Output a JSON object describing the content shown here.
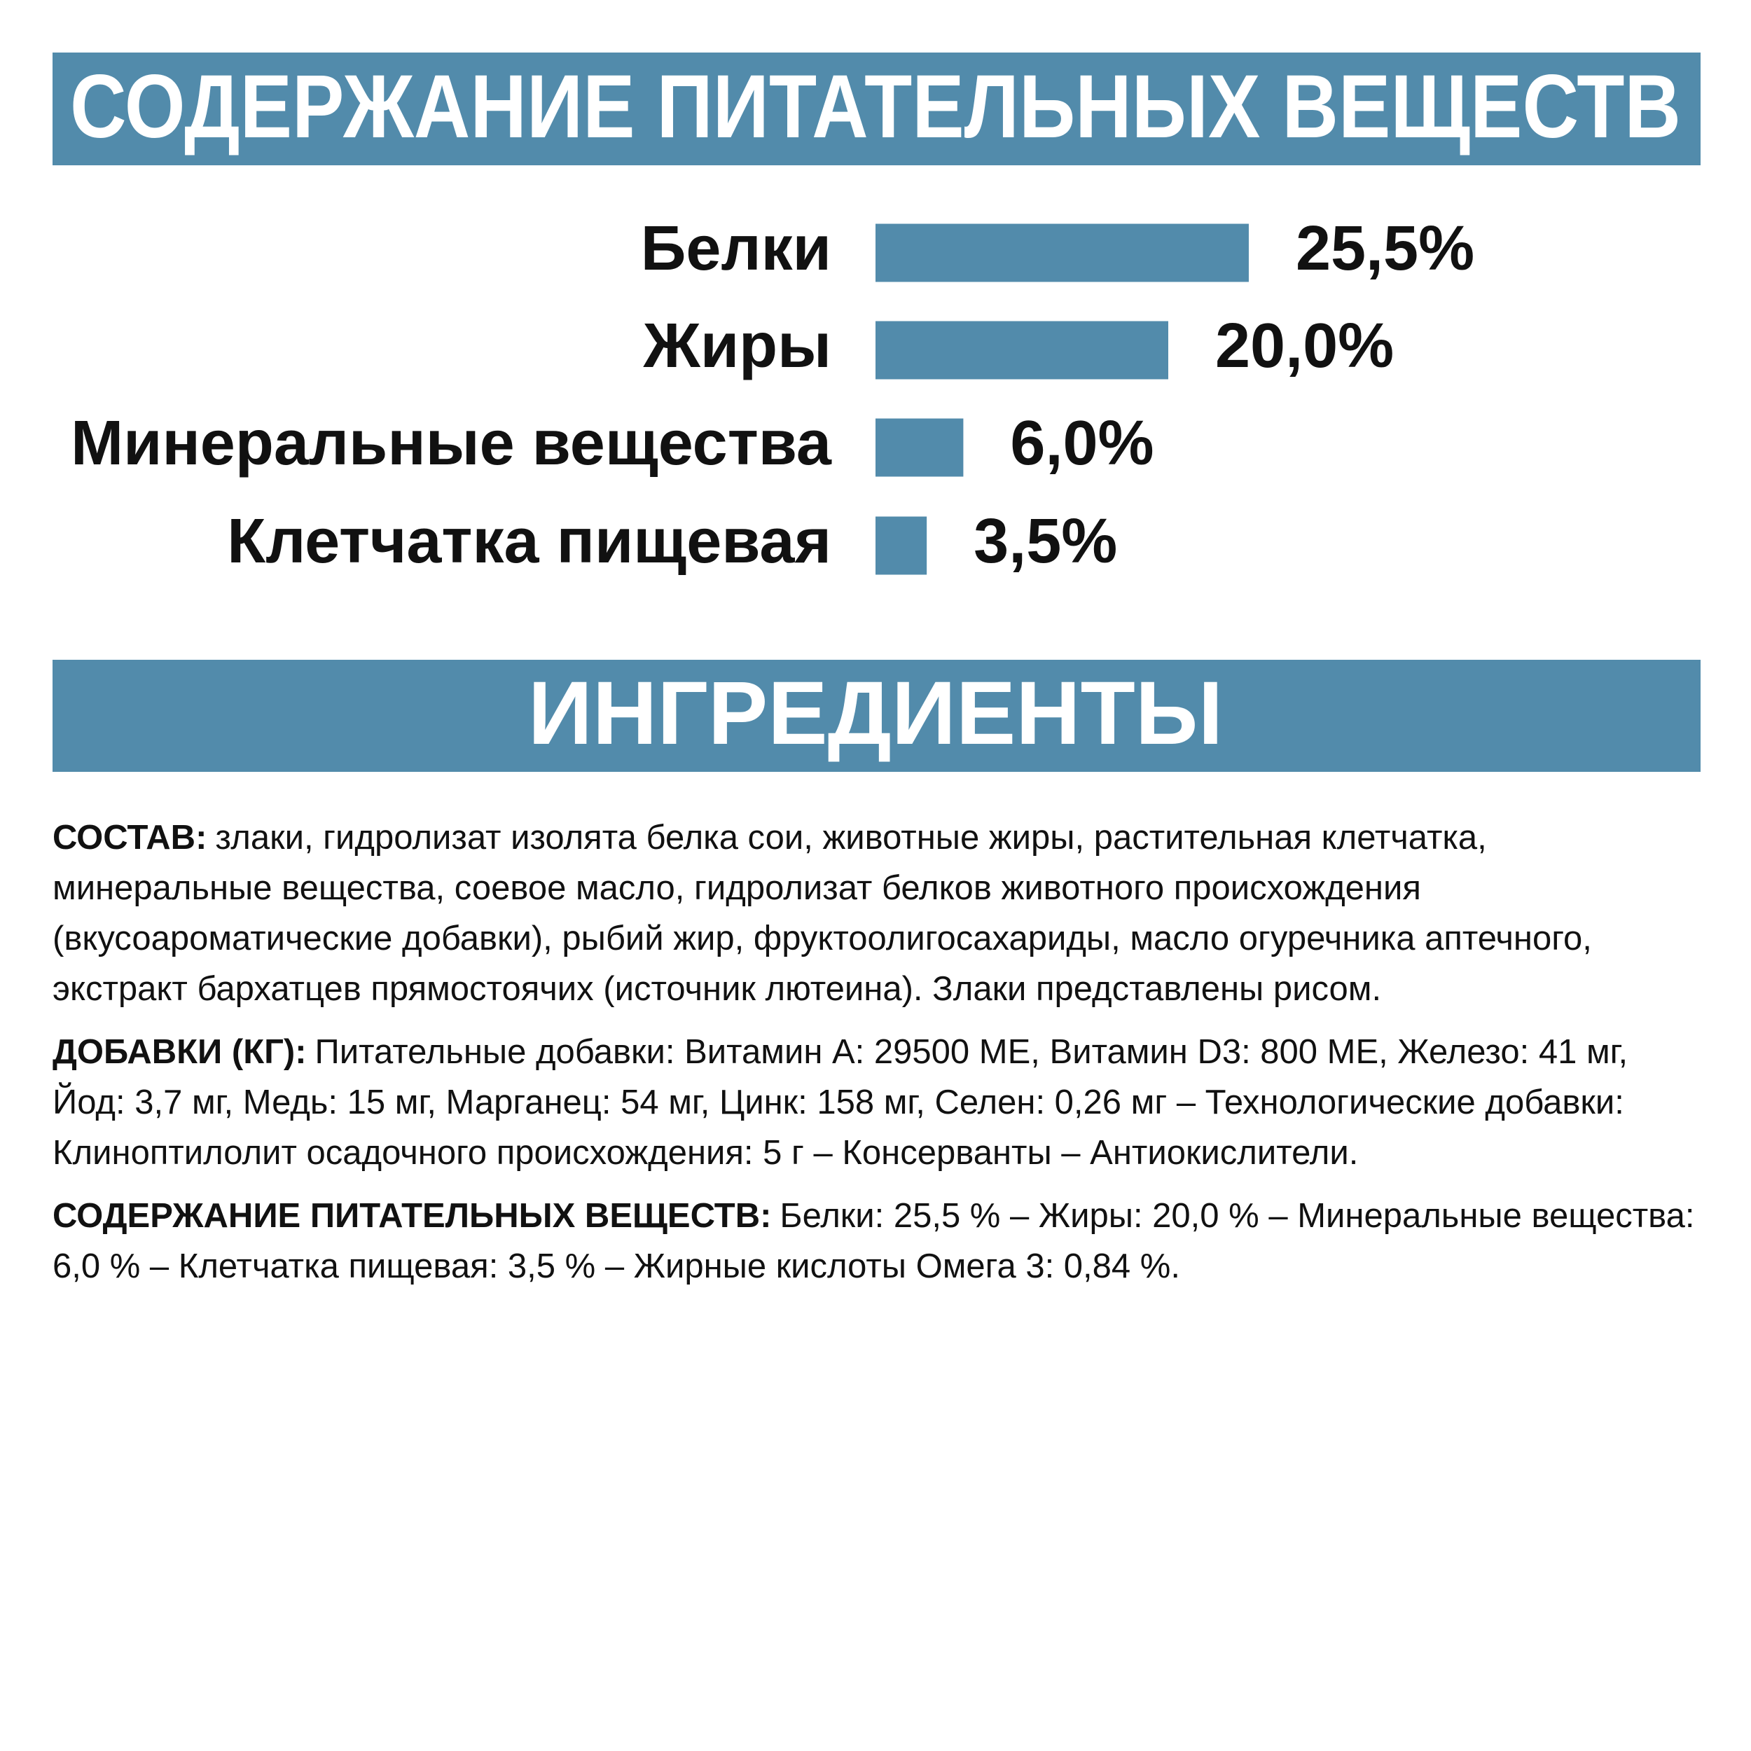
{
  "header": {
    "title": "СОДЕРЖАНИЕ ПИТАТЕЛЬНЫХ ВЕЩЕСТВ"
  },
  "chart_data": {
    "type": "bar",
    "orientation": "horizontal",
    "categories": [
      "Белки",
      "Жиры",
      "Минеральные вещества",
      "Клетчатка пищевая"
    ],
    "values": [
      25.5,
      20.0,
      6.0,
      3.5
    ],
    "value_labels": [
      "25,5%",
      "20,0%",
      "6,0%",
      "3,5%"
    ],
    "color": "#528bab"
  },
  "ingredients": {
    "title": "ИНГРЕДИЕНТЫ",
    "items": [
      {
        "label": "СОСТАВ:",
        "text": "злаки, гидролизат изолята белка сои, животные жиры, растительная клетчатка, минеральные вещества, соевое масло, гидролизат белков животного происхождения (вкусоароматические добавки), рыбий жир, фруктоолигосахариды, масло огуречника аптечного, экстракт бархатцев прямостоячих (источник лютеина). Злаки представлены рисом."
      },
      {
        "label": "ДОБАВКИ (КГ):",
        "text": "Питательные добавки: Витамин A: 29500 МЕ, Витамин D3: 800 МЕ, Железо: 41 мг, Йод: 3,7 мг, Медь: 15 мг, Марганец: 54 мг, Цинк: 158 мг, Селен: 0,26 мг – Технологические добавки: Клиноптилолит осадочного происхождения: 5 г – Консерванты – Антиокислители."
      },
      {
        "label": "СОДЕРЖАНИЕ ПИТАТЕЛЬНЫХ ВЕЩЕСТВ:",
        "text": "Белки: 25,5 % – Жиры: 20,0 % – Минеральные вещества: 6,0 % – Клетчатка пищевая: 3,5 % – Жирные кислоты Омега 3: 0,84 %."
      }
    ]
  }
}
